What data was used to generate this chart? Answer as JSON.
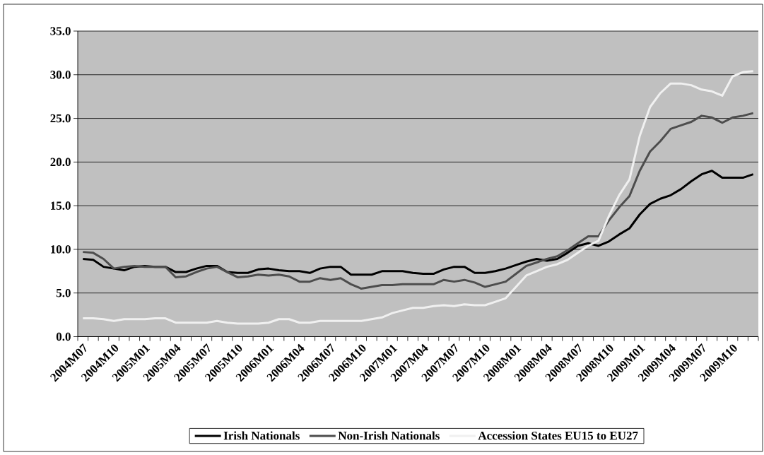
{
  "chart_data": {
    "type": "line",
    "categories": [
      "2004M07",
      null,
      null,
      "2004M10",
      null,
      null,
      "2005M01",
      null,
      null,
      "2005M04",
      null,
      null,
      "2005M07",
      null,
      null,
      "2005M10",
      null,
      null,
      "2006M01",
      null,
      null,
      "2006M04",
      null,
      null,
      "2006M07",
      null,
      null,
      "2006M10",
      null,
      null,
      "2007M01",
      null,
      null,
      "2007M04",
      null,
      null,
      "2007M07",
      null,
      null,
      "2007M10",
      null,
      null,
      "2008M01",
      null,
      null,
      "2008M04",
      null,
      null,
      "2008M07",
      null,
      null,
      "2008M10",
      null,
      null,
      "2009M01",
      null,
      null,
      "2009M04",
      null,
      null,
      "2009M07",
      null,
      null,
      "2009M10",
      null,
      null
    ],
    "series": [
      {
        "name": "Irish Nationals",
        "color": "#000000",
        "values": [
          8.9,
          8.8,
          8.0,
          7.8,
          7.6,
          8.0,
          8.1,
          8.0,
          8.0,
          7.4,
          7.4,
          7.8,
          8.1,
          8.1,
          7.4,
          7.3,
          7.3,
          7.7,
          7.8,
          7.6,
          7.5,
          7.5,
          7.3,
          7.8,
          8.0,
          8.0,
          7.1,
          7.1,
          7.1,
          7.5,
          7.5,
          7.5,
          7.3,
          7.2,
          7.2,
          7.7,
          8.0,
          8.0,
          7.3,
          7.3,
          7.5,
          7.8,
          8.2,
          8.6,
          8.9,
          8.7,
          8.9,
          9.6,
          10.4,
          10.7,
          10.4,
          10.9,
          11.7,
          12.4,
          14.0,
          15.2,
          15.8,
          16.2,
          16.9,
          17.8,
          18.6,
          19.0,
          18.2,
          18.2,
          18.2,
          18.6
        ]
      },
      {
        "name": "Non-Irish Nationals",
        "color": "#4d4d4d",
        "values": [
          9.7,
          9.6,
          8.9,
          7.8,
          8.0,
          8.1,
          8.0,
          8.0,
          8.0,
          6.8,
          6.9,
          7.4,
          7.8,
          8.0,
          7.4,
          6.8,
          6.9,
          7.1,
          7.0,
          7.1,
          6.9,
          6.3,
          6.3,
          6.7,
          6.5,
          6.7,
          6.0,
          5.5,
          5.7,
          5.9,
          5.9,
          6.0,
          6.0,
          6.0,
          6.0,
          6.5,
          6.3,
          6.5,
          6.2,
          5.7,
          6.0,
          6.3,
          7.2,
          8.1,
          8.5,
          8.9,
          9.2,
          9.9,
          10.7,
          11.5,
          11.5,
          13.3,
          14.8,
          16.1,
          19.0,
          21.2,
          22.4,
          23.8,
          24.2,
          24.6,
          25.3,
          25.1,
          24.5,
          25.1,
          25.3,
          25.6
        ]
      },
      {
        "name": "Accession States EU15 to EU27",
        "color": "#f0f0f0",
        "values": [
          2.1,
          2.1,
          2.0,
          1.8,
          2.0,
          2.0,
          2.0,
          2.1,
          2.1,
          1.6,
          1.6,
          1.6,
          1.6,
          1.8,
          1.6,
          1.5,
          1.5,
          1.5,
          1.6,
          2.0,
          2.0,
          1.6,
          1.6,
          1.8,
          1.8,
          1.8,
          1.8,
          1.8,
          2.0,
          2.2,
          2.7,
          3.0,
          3.3,
          3.3,
          3.5,
          3.6,
          3.5,
          3.7,
          3.6,
          3.6,
          4.0,
          4.4,
          5.7,
          7.0,
          7.5,
          8.0,
          8.3,
          8.8,
          9.6,
          10.4,
          11.0,
          13.8,
          16.2,
          18.0,
          23.0,
          26.3,
          27.9,
          29.0,
          29.0,
          28.8,
          28.3,
          28.1,
          27.6,
          29.8,
          30.3,
          30.4
        ]
      }
    ],
    "ylim": [
      0,
      35
    ],
    "yticks": [
      {
        "value": 0,
        "label": "0.0"
      },
      {
        "value": 5,
        "label": "5.0"
      },
      {
        "value": 10,
        "label": "10.0"
      },
      {
        "value": 15,
        "label": "15.0"
      },
      {
        "value": 20,
        "label": "20.0"
      },
      {
        "value": 25,
        "label": "25.0"
      },
      {
        "value": 30,
        "label": "30.0"
      },
      {
        "value": 35,
        "label": "35.0"
      }
    ],
    "grid": "y",
    "legend": "bottom"
  }
}
